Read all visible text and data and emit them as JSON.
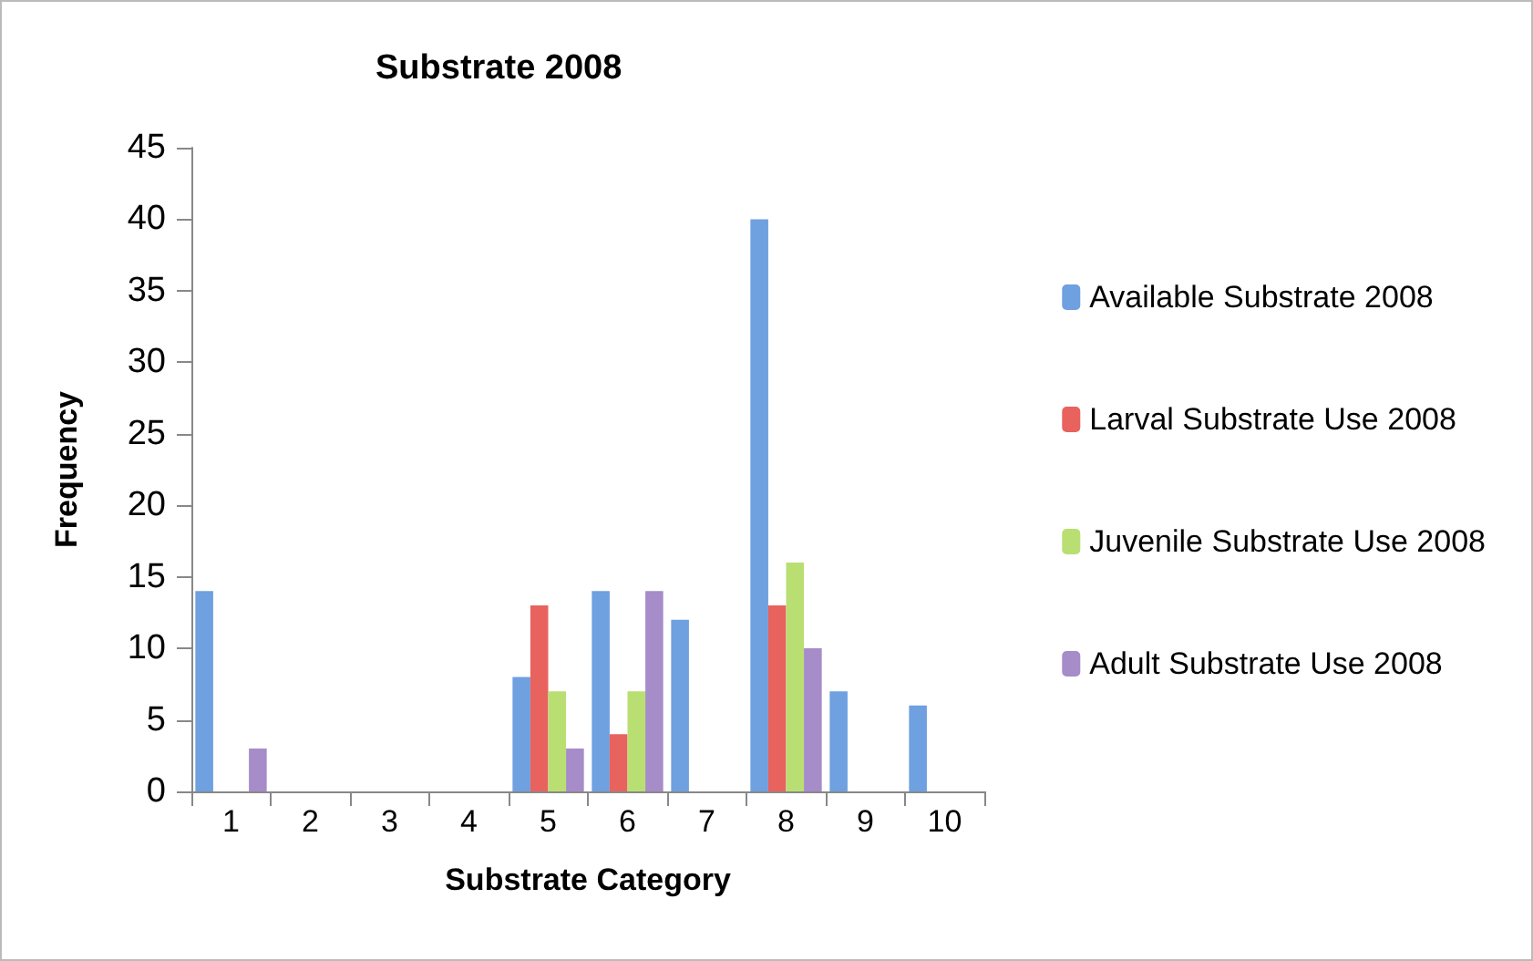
{
  "chart_data": {
    "type": "bar",
    "title": "Substrate 2008",
    "xlabel": "Substrate Category",
    "ylabel": "Frequency",
    "categories": [
      "1",
      "2",
      "3",
      "4",
      "5",
      "6",
      "7",
      "8",
      "9",
      "10"
    ],
    "series": [
      {
        "name": "Available Substrate 2008",
        "color": "#6fa0e0",
        "values": [
          14,
          0,
          0,
          0,
          8,
          14,
          12,
          40,
          7,
          6
        ]
      },
      {
        "name": "Larval Substrate Use 2008",
        "color": "#e8625e",
        "values": [
          0,
          0,
          0,
          0,
          13,
          4,
          0,
          13,
          0,
          0
        ]
      },
      {
        "name": "Juvenile Substrate Use 2008",
        "color": "#b9df72",
        "values": [
          0,
          0,
          0,
          0,
          7,
          7,
          0,
          16,
          0,
          0
        ]
      },
      {
        "name": "Adult Substrate Use 2008",
        "color": "#a68cc8",
        "values": [
          3,
          0,
          0,
          0,
          3,
          14,
          0,
          10,
          0,
          0
        ]
      }
    ],
    "ylim": [
      0,
      45
    ],
    "yticks": [
      0,
      5,
      10,
      15,
      20,
      25,
      30,
      35,
      40,
      45
    ],
    "grid": false,
    "legend": "right"
  }
}
